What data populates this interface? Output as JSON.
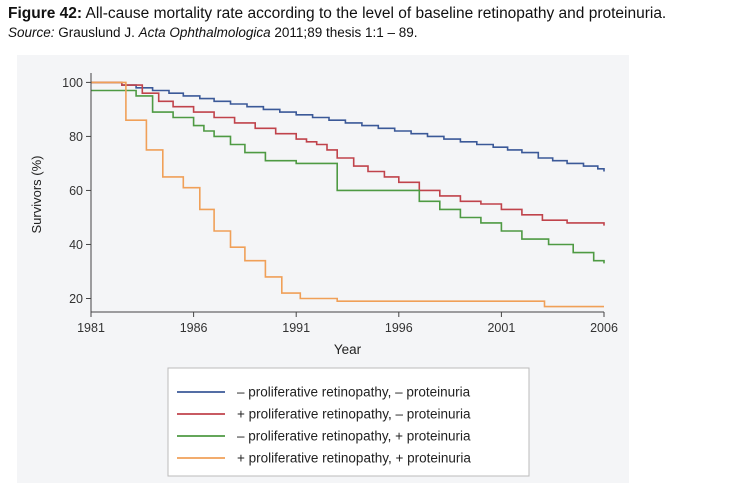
{
  "caption": {
    "figure_label": "Figure 42:",
    "title": " All-cause mortality rate according to the level of baseline retinopathy and proteinuria.",
    "source_label": "Source:",
    "source_author": " Grauslund J. ",
    "source_journal": "Acta Ophthalmologica",
    "source_details": " 2011;89 thesis 1:1 – 89."
  },
  "chart_data": {
    "type": "line",
    "step": true,
    "xlabel": "Year",
    "ylabel": "Survivors (%)",
    "xlim": [
      1981,
      2006
    ],
    "ylim": [
      15,
      102
    ],
    "xticks": [
      "1981",
      "1986",
      "1991",
      "1996",
      "2001",
      "2006"
    ],
    "yticks": [
      "20",
      "40",
      "60",
      "80",
      "100"
    ],
    "grid": false,
    "legend_position": "bottom",
    "series": [
      {
        "name": "– proliferative retinopathy, – proteinuria",
        "color": "#3b5998",
        "x": [
          1981,
          1982.5,
          1983.2,
          1984,
          1984.8,
          1985.5,
          1986.3,
          1987,
          1987.8,
          1988.6,
          1989.4,
          1990.2,
          1991,
          1991.8,
          1992.6,
          1993.4,
          1994.2,
          1995,
          1995.8,
          1996.6,
          1997.4,
          1998.2,
          1999,
          1999.8,
          2000.6,
          2001.3,
          2002,
          2002.8,
          2003.5,
          2004.2,
          2005,
          2005.7,
          2006
        ],
        "y": [
          100,
          99,
          98,
          97,
          96,
          95,
          94,
          93,
          92,
          91,
          90,
          89,
          88,
          87,
          86,
          85,
          84,
          83,
          82,
          81,
          80,
          79,
          78,
          77,
          76,
          75,
          74,
          72,
          71,
          70,
          69,
          68,
          67
        ]
      },
      {
        "name": "+ proliferative retinopathy, – proteinuria",
        "color": "#c0434b",
        "x": [
          1981,
          1982.5,
          1983.5,
          1984.3,
          1985,
          1986,
          1987,
          1988,
          1989,
          1990,
          1991,
          1991.5,
          1992,
          1992.5,
          1993,
          1993.8,
          1994.5,
          1995.3,
          1996,
          1997,
          1998,
          1999,
          2000,
          2001,
          2002,
          2003,
          2004.2,
          2006
        ],
        "y": [
          100,
          99,
          96,
          93,
          91,
          89,
          87,
          85,
          83,
          81,
          79,
          78,
          77,
          75,
          72,
          69,
          67,
          65,
          63,
          60,
          58,
          56,
          55,
          53,
          51,
          49,
          48,
          47
        ]
      },
      {
        "name": "– proliferative retinopathy, + proteinuria",
        "color": "#4e9a43",
        "x": [
          1981,
          1982.5,
          1983.2,
          1984,
          1985,
          1986,
          1986.5,
          1987,
          1987.8,
          1988.5,
          1989.5,
          1991,
          1992.5,
          1993,
          1995,
          1996,
          1997,
          1998,
          1999,
          2000,
          2001,
          2002,
          2003.3,
          2004.5,
          2005.5,
          2006
        ],
        "y": [
          97,
          97,
          95,
          89,
          87,
          84,
          82,
          80,
          77,
          74,
          71,
          70,
          70,
          60,
          60,
          60,
          56,
          53,
          50,
          48,
          45,
          42,
          40,
          37,
          34,
          33
        ]
      },
      {
        "name": "+ proliferative retinopathy, + proteinuria",
        "color": "#f0a058",
        "x": [
          1981,
          1982.7,
          1983.7,
          1984.5,
          1985.5,
          1986.3,
          1987,
          1987.8,
          1988.5,
          1989.5,
          1990.3,
          1991.2,
          1993,
          1995,
          1997,
          1999,
          2002,
          2003.1,
          2006
        ],
        "y": [
          100,
          86,
          75,
          65,
          61,
          53,
          45,
          39,
          34,
          28,
          22,
          20,
          19,
          19,
          19,
          19,
          19,
          17,
          17
        ]
      }
    ]
  }
}
